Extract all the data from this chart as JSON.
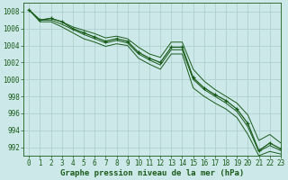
{
  "background_color": "#cce8e8",
  "grid_color": "#aacccc",
  "line_color": "#1a5c1a",
  "xlabel": "Graphe pression niveau de la mer (hPa)",
  "xlim": [
    -0.5,
    23
  ],
  "ylim": [
    991.0,
    1009.0
  ],
  "yticks": [
    992,
    994,
    996,
    998,
    1000,
    1002,
    1004,
    1006,
    1008
  ],
  "xticks": [
    0,
    1,
    2,
    3,
    4,
    5,
    6,
    7,
    8,
    9,
    10,
    11,
    12,
    13,
    14,
    15,
    16,
    17,
    18,
    19,
    20,
    21,
    22,
    23
  ],
  "series": {
    "main": [
      1008.2,
      1007.0,
      1007.2,
      1006.8,
      1006.0,
      1005.5,
      1005.0,
      1004.5,
      1004.8,
      1004.5,
      1003.2,
      1002.5,
      1002.0,
      1003.8,
      1003.8,
      1000.2,
      999.0,
      998.2,
      997.5,
      996.5,
      994.8,
      991.6,
      992.5,
      991.8
    ],
    "upper": [
      1008.2,
      1007.0,
      1007.2,
      1006.8,
      1006.2,
      1005.8,
      1005.4,
      1004.9,
      1005.1,
      1004.8,
      1003.8,
      1003.0,
      1002.6,
      1004.4,
      1004.4,
      1001.2,
      999.8,
      998.8,
      998.0,
      997.2,
      995.8,
      992.8,
      993.5,
      992.5
    ],
    "lower": [
      1008.2,
      1006.8,
      1006.8,
      1006.2,
      1005.5,
      1004.8,
      1004.4,
      1003.9,
      1004.2,
      1004.0,
      1002.5,
      1001.8,
      1001.2,
      1003.0,
      1003.0,
      999.0,
      998.0,
      997.2,
      996.5,
      995.5,
      993.5,
      991.0,
      991.5,
      991.2
    ],
    "smooth": [
      1008.2,
      1007.0,
      1007.0,
      1006.5,
      1005.9,
      1005.3,
      1004.8,
      1004.3,
      1004.6,
      1004.3,
      1003.0,
      1002.3,
      1001.7,
      1003.5,
      1003.5,
      1000.0,
      998.8,
      998.0,
      997.2,
      996.2,
      994.4,
      991.5,
      992.2,
      991.6
    ]
  }
}
